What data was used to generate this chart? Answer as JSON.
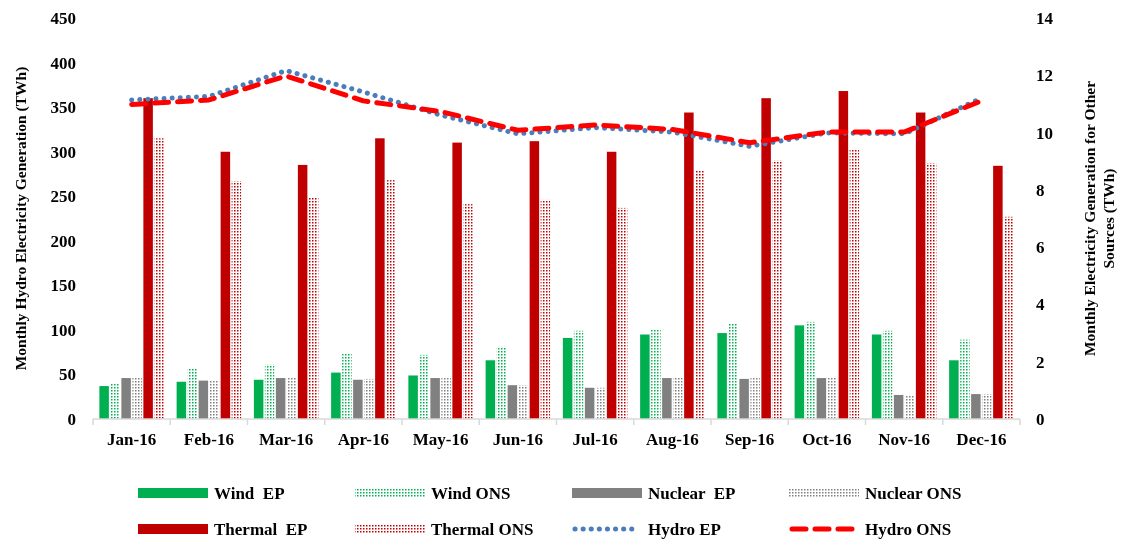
{
  "chart_data": {
    "type": "bar",
    "categories": [
      "Jan-16",
      "Feb-16",
      "Mar-16",
      "Apr-16",
      "May-16",
      "Jun-16",
      "Jul-16",
      "Aug-16",
      "Sep-16",
      "Oct-16",
      "Nov-16",
      "Dec-16"
    ],
    "ylabel": "Monthly Hydro Electricity Generation (TWh)",
    "y2label": "Monthly Electricity Generation for Other Sources (TWh)",
    "ylim": [
      0,
      450
    ],
    "yticks": [
      0,
      50,
      100,
      150,
      200,
      250,
      300,
      350,
      400,
      450
    ],
    "y2lim": [
      0,
      14
    ],
    "y2ticks": [
      0,
      2,
      4,
      6,
      8,
      10,
      12,
      14
    ],
    "grid": false,
    "legend": "bottom",
    "series": [
      {
        "name": "Wind  EP",
        "color": "#00b050",
        "axis": "y2",
        "line_style": "solid",
        "values": [
          1.15,
          1.3,
          1.37,
          1.62,
          1.52,
          2.05,
          2.83,
          2.95,
          3.0,
          3.27,
          2.95,
          2.05
        ]
      },
      {
        "name": "Wind ONS",
        "color": "#00b050",
        "axis": "y2",
        "line_style": "dotted",
        "values": [
          1.25,
          1.75,
          1.9,
          2.27,
          2.24,
          2.52,
          3.08,
          3.14,
          3.33,
          3.39,
          3.08,
          2.77
        ]
      },
      {
        "name": "Nuclear  EP",
        "color": "#808080",
        "axis": "y2",
        "line_style": "solid",
        "values": [
          1.43,
          1.34,
          1.43,
          1.37,
          1.43,
          1.18,
          1.09,
          1.43,
          1.4,
          1.43,
          0.84,
          0.87
        ]
      },
      {
        "name": "Nuclear ONS",
        "color": "#808080",
        "axis": "y2",
        "line_style": "dotted",
        "values": [
          1.46,
          1.34,
          1.46,
          1.4,
          1.43,
          1.18,
          1.09,
          1.46,
          1.43,
          1.46,
          0.84,
          0.87
        ]
      },
      {
        "name": "Thermal  EP",
        "color": "#c00000",
        "axis": "y2",
        "line_style": "solid",
        "values": [
          11.2,
          9.33,
          8.87,
          9.8,
          9.65,
          9.7,
          9.33,
          10.7,
          11.2,
          11.45,
          10.7,
          8.84
        ]
      },
      {
        "name": "Thermal ONS",
        "color": "#c00000",
        "axis": "y2",
        "line_style": "dotted",
        "values": [
          9.8,
          8.3,
          7.75,
          8.34,
          7.5,
          7.65,
          7.37,
          8.68,
          9.02,
          9.43,
          8.93,
          7.06
        ]
      },
      {
        "name": "Hydro EP",
        "type": "line",
        "color": "#4a7ebb",
        "axis": "y",
        "line_style": "dotted",
        "marker": "none",
        "values": [
          358,
          362,
          391,
          367,
          341,
          320,
          327,
          322,
          306,
          321,
          320,
          360
        ]
      },
      {
        "name": "Hydro ONS",
        "type": "line",
        "color": "#ff0000",
        "axis": "y",
        "line_style": "dashed",
        "marker": "none",
        "values": [
          353,
          358,
          385,
          357,
          345,
          324,
          330,
          325,
          310,
          322,
          322,
          357
        ]
      }
    ]
  }
}
